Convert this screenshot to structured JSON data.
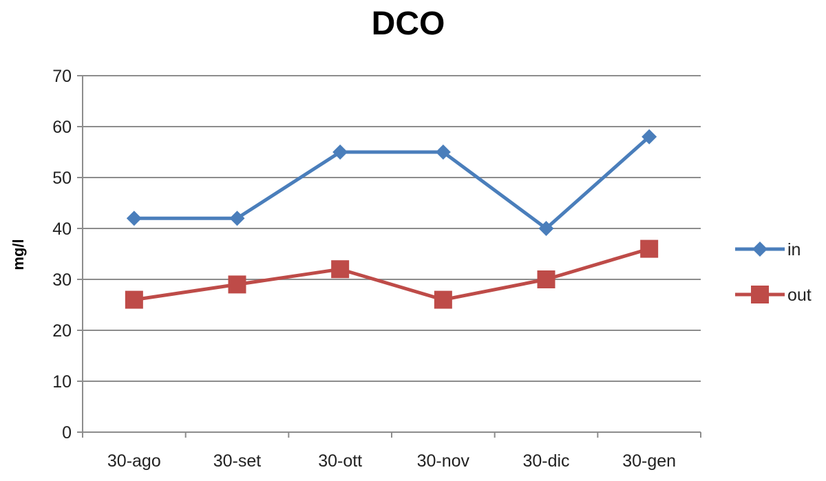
{
  "chart_data": {
    "type": "line",
    "title": "DCO",
    "xlabel": "",
    "ylabel": "mg/l",
    "categories": [
      "30-ago",
      "30-set",
      "30-ott",
      "30-nov",
      "30-dic",
      "30-gen"
    ],
    "ylim": [
      0,
      70
    ],
    "yticks": [
      "0",
      "10",
      "20",
      "30",
      "40",
      "50",
      "60",
      "70"
    ],
    "grid": true,
    "legend_position": "right",
    "series": [
      {
        "name": "in",
        "values": [
          42,
          42,
          55,
          55,
          40,
          58
        ],
        "color": "#4a7ebb",
        "marker": "diamond"
      },
      {
        "name": "out",
        "values": [
          26,
          29,
          32,
          26,
          30,
          36
        ],
        "color": "#be4b48",
        "marker": "square"
      }
    ]
  }
}
